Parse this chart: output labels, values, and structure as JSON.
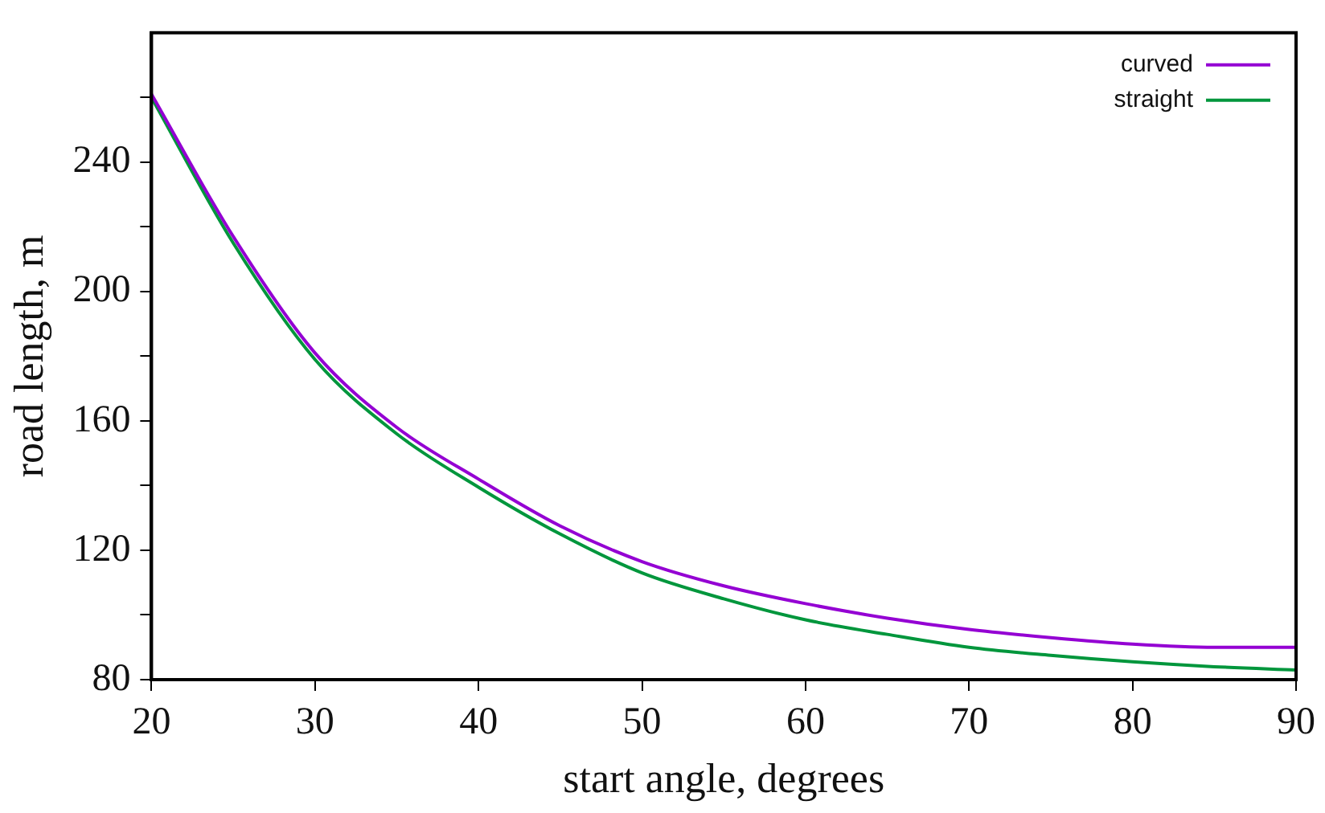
{
  "chart_data": {
    "type": "line",
    "xlabel": "start angle, degrees",
    "ylabel": "road length, m",
    "x": [
      20,
      25,
      30,
      35,
      40,
      45,
      50,
      55,
      60,
      65,
      70,
      75,
      80,
      85,
      90
    ],
    "series": [
      {
        "name": "curved",
        "color": "#9400d3",
        "values": [
          261,
          217,
          181,
          158,
          142,
          127.5,
          116.5,
          109,
          103.5,
          99,
          95.5,
          93,
          91,
          90,
          90
        ]
      },
      {
        "name": "straight",
        "color": "#00963c",
        "values": [
          260,
          215,
          179,
          156,
          139.5,
          125,
          113,
          105,
          98.5,
          94,
          90,
          87.5,
          85.5,
          84,
          83
        ]
      }
    ],
    "xlim": [
      20,
      90
    ],
    "xticks": [
      20,
      30,
      40,
      50,
      60,
      70,
      80,
      90
    ],
    "ylim": [
      80,
      280
    ],
    "yticks": [
      80,
      {
        "value": 100,
        "label": null
      },
      120,
      {
        "value": 140,
        "label": null
      },
      160,
      {
        "value": 180,
        "label": null
      },
      200,
      {
        "value": 220,
        "label": null
      },
      240,
      {
        "value": 260,
        "label": null
      }
    ],
    "grid": false,
    "legend": "top right",
    "marker": "none",
    "line_style": "solid"
  }
}
